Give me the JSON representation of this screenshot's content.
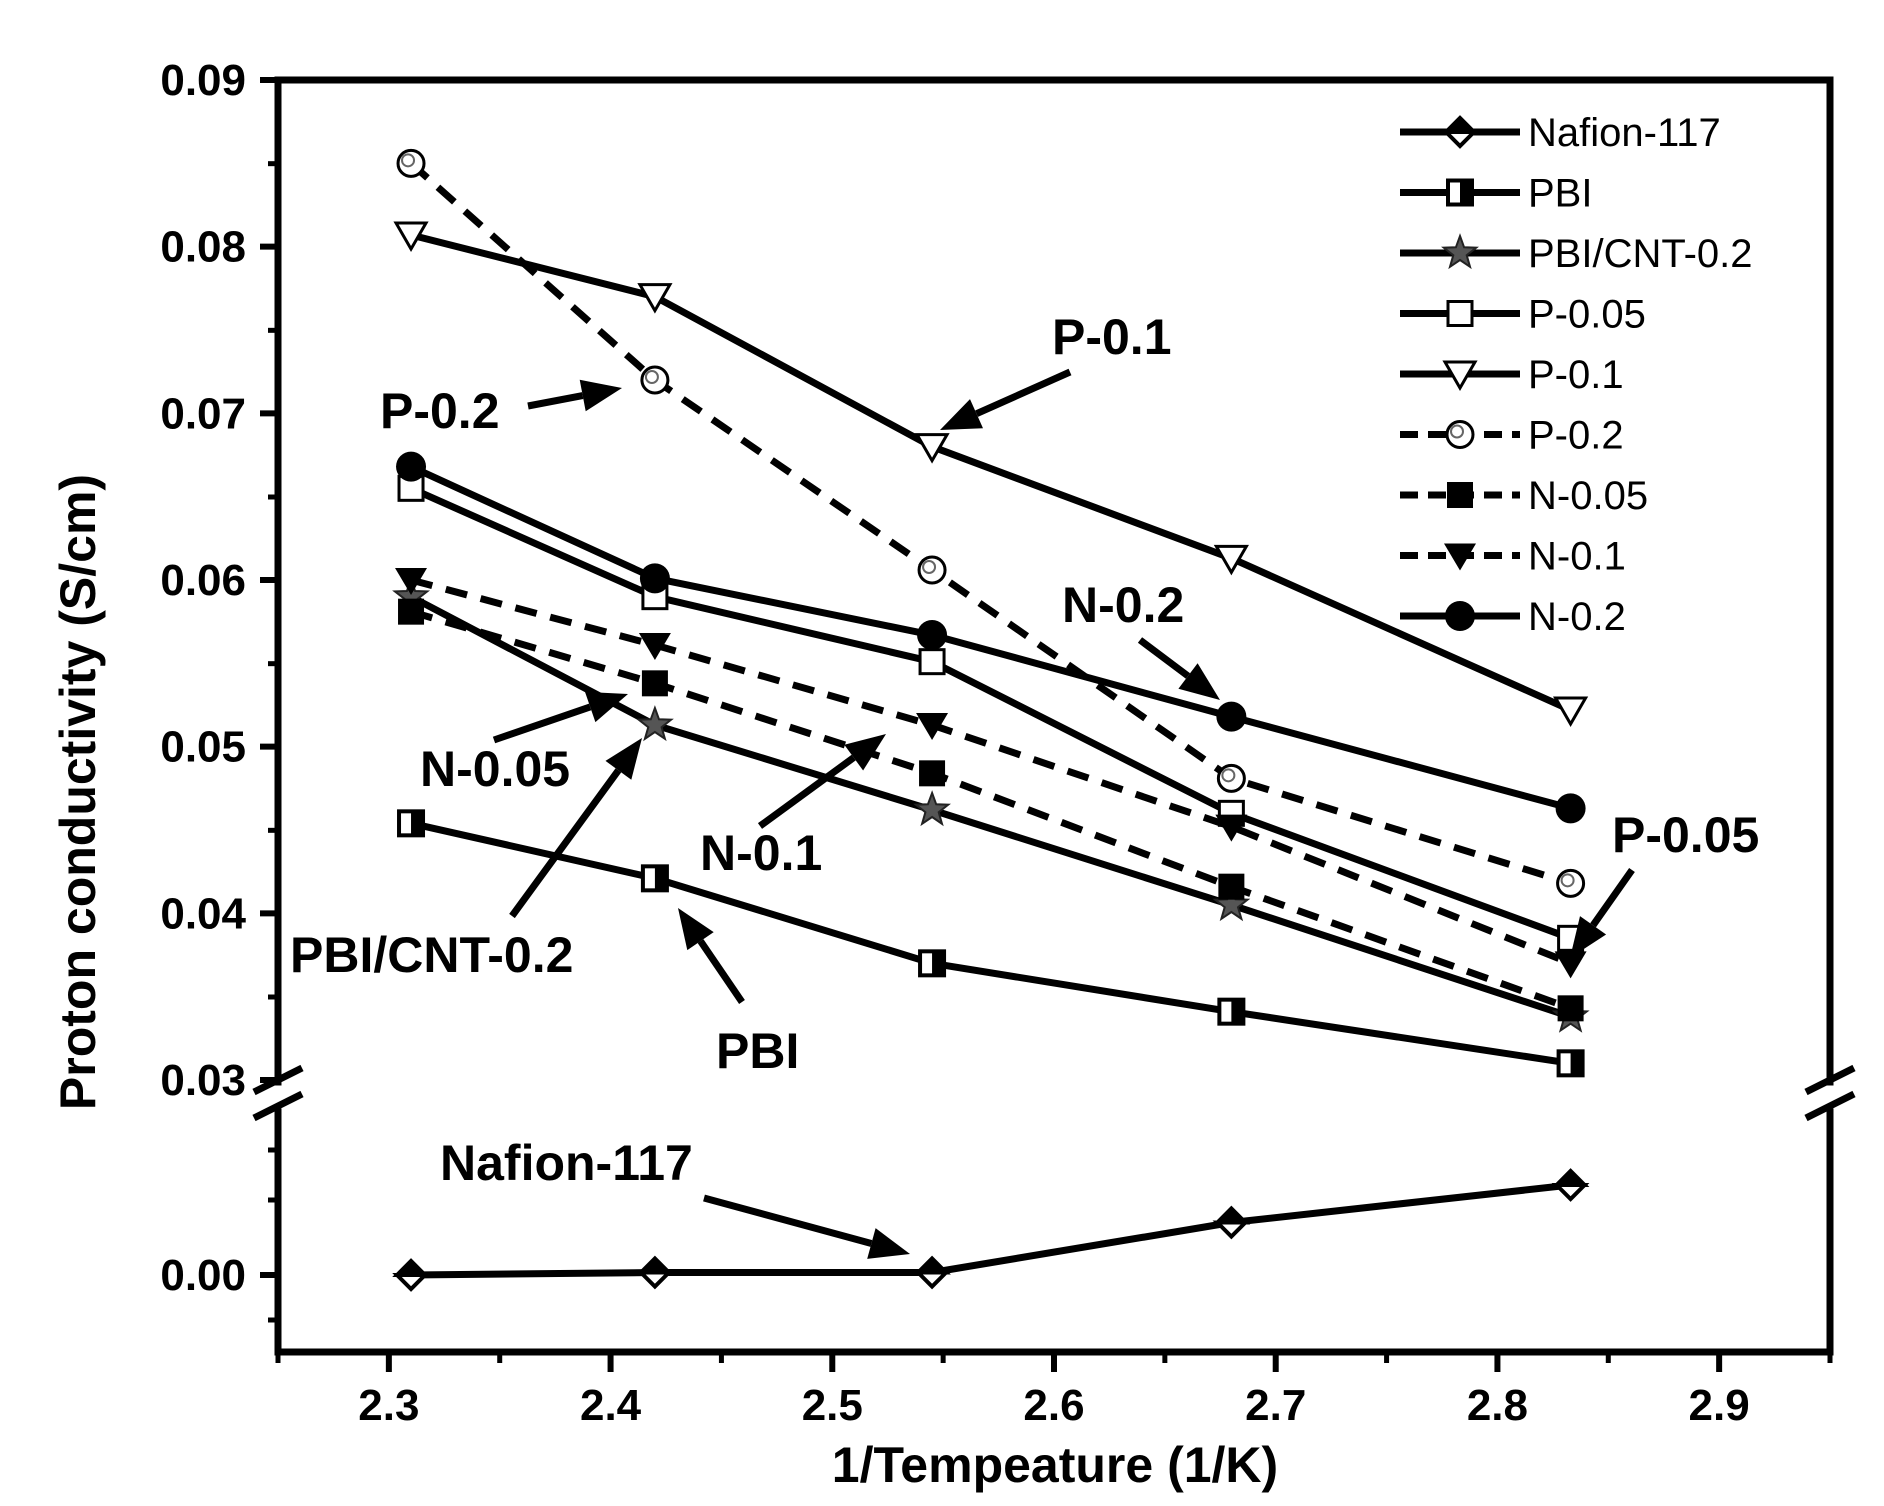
{
  "chart_data": {
    "type": "line",
    "title": "",
    "xlabel": "1/Tempeature (1/K)",
    "ylabel": "Proton conductivity (S/cm)",
    "xlim": [
      2.25,
      2.95
    ],
    "xticks": [
      2.3,
      2.4,
      2.5,
      2.6,
      2.7,
      2.8,
      2.9
    ],
    "x_tick_labels": [
      "2.3",
      "2.4",
      "2.5",
      "2.6",
      "2.7",
      "2.8",
      "2.9"
    ],
    "y_axis_break": {
      "upper_range": [
        0.03,
        0.09
      ],
      "lower_range": [
        -0.005,
        0.007
      ],
      "break_at": 0.03
    },
    "yticks_upper": [
      0.03,
      0.04,
      0.05,
      0.06,
      0.07,
      0.08,
      0.09
    ],
    "y_tick_labels_upper": [
      "0.03",
      "0.04",
      "0.05",
      "0.06",
      "0.07",
      "0.08",
      "0.09"
    ],
    "yticks_lower": [
      0.0
    ],
    "y_tick_labels_lower": [
      "0.00"
    ],
    "x": [
      2.31,
      2.42,
      2.545,
      2.68,
      2.833
    ],
    "legend_position": "top-right",
    "series": [
      {
        "name": "Nafion-117",
        "marker": "half-diamond",
        "dash": "solid",
        "values": [
          0.0,
          0.0001,
          0.0001,
          0.0021,
          0.0036
        ]
      },
      {
        "name": "PBI",
        "marker": "half-square",
        "dash": "solid",
        "values": [
          0.0454,
          0.0421,
          0.037,
          0.0341,
          0.031
        ]
      },
      {
        "name": "PBI/CNT-0.2",
        "marker": "star",
        "dash": "solid",
        "values": [
          0.059,
          0.0513,
          0.0462,
          0.0405,
          0.0338
        ]
      },
      {
        "name": "P-0.05",
        "marker": "open-square",
        "dash": "solid",
        "values": [
          0.0655,
          0.059,
          0.0551,
          0.046,
          0.0385
        ]
      },
      {
        "name": "P-0.1",
        "marker": "open-triangle-down",
        "dash": "solid",
        "values": [
          0.0807,
          0.077,
          0.068,
          0.0613,
          0.0522
        ]
      },
      {
        "name": "P-0.2",
        "marker": "open-circle",
        "dash": "dashed",
        "values": [
          0.085,
          0.072,
          0.0606,
          0.0481,
          0.0418
        ]
      },
      {
        "name": "N-0.05",
        "marker": "filled-square",
        "dash": "dashed",
        "values": [
          0.0581,
          0.0538,
          0.0484,
          0.0416,
          0.0343
        ]
      },
      {
        "name": "N-0.1",
        "marker": "filled-triangle-down",
        "dash": "dashed",
        "values": [
          0.06,
          0.0561,
          0.0513,
          0.0452,
          0.037
        ]
      },
      {
        "name": "N-0.2",
        "marker": "filled-circle",
        "dash": "solid",
        "values": [
          0.0668,
          0.0601,
          0.0567,
          0.0518,
          0.0463
        ]
      }
    ],
    "annotations": [
      {
        "text": "P-0.1",
        "series": "P-0.1",
        "point_index": 2
      },
      {
        "text": "P-0.2",
        "series": "P-0.2",
        "point_index": 1
      },
      {
        "text": "N-0.2",
        "series": "N-0.2",
        "point_index": 3
      },
      {
        "text": "N-0.05",
        "series": "N-0.05",
        "point_index": 1
      },
      {
        "text": "N-0.1",
        "series": "N-0.1",
        "point_index": 2
      },
      {
        "text": "PBI/CNT-0.2",
        "series": "PBI/CNT-0.2",
        "point_index": 1
      },
      {
        "text": "PBI",
        "series": "PBI",
        "point_index": 1
      },
      {
        "text": "P-0.05",
        "series": "P-0.05",
        "point_index": 4
      },
      {
        "text": "Nafion-117",
        "series": "Nafion-117",
        "point_index": 2
      }
    ]
  }
}
